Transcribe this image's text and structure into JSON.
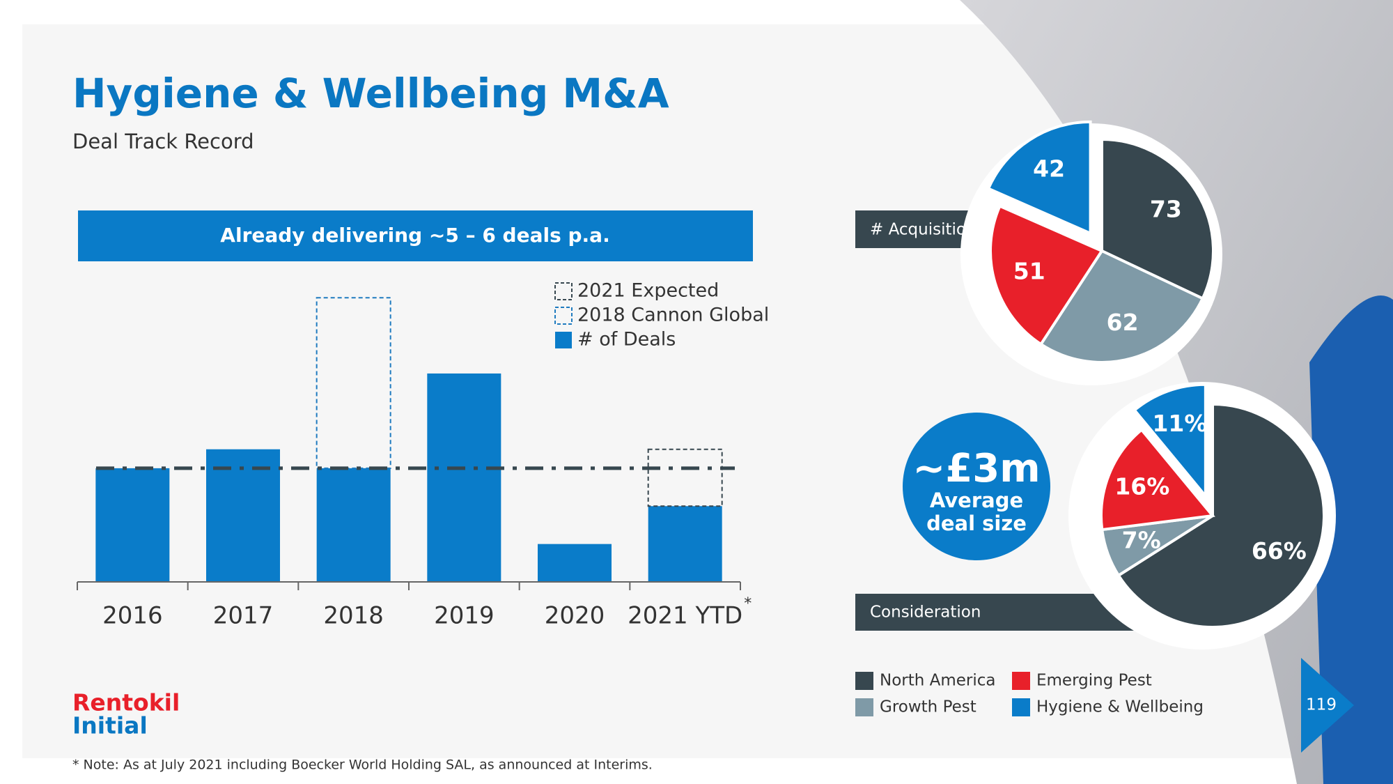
{
  "title": "Hygiene & Wellbeing M&A",
  "subtitle": "Deal Track Record",
  "banner": "Already delivering ~5 – 6 deals p.a.",
  "chart_data": [
    {
      "type": "bar",
      "stacked": true,
      "categories": [
        "2016",
        "2017",
        "2018",
        "2019",
        "2020",
        "2021 YTD"
      ],
      "category_marks": [
        null,
        null,
        null,
        null,
        null,
        "*"
      ],
      "series": [
        {
          "name": "# of Deals",
          "color": "#0a7cc9",
          "values": [
            6,
            7,
            6,
            11,
            2,
            4
          ]
        },
        {
          "name": "2018 Cannon Global",
          "color": "#1f7bbf",
          "style": "dashed",
          "values": [
            null,
            null,
            9,
            null,
            null,
            null
          ]
        },
        {
          "name": "2021 Expected",
          "color": "#37474f",
          "style": "dashed",
          "values": [
            null,
            null,
            null,
            null,
            null,
            3
          ]
        }
      ],
      "legend_reversed": true,
      "ylim": [
        0,
        16
      ],
      "reference_line": {
        "value": 6,
        "color": "#37474f",
        "style": "dash-dot"
      }
    },
    {
      "type": "pie",
      "label": "# Acquisitions",
      "categories": [
        "North America",
        "Growth Pest",
        "Emerging Pest",
        "Hygiene & Wellbeing"
      ],
      "colors": [
        "#37474f",
        "#7f9aa7",
        "#e8202a",
        "#0a7cc9"
      ],
      "values": [
        73,
        62,
        51,
        42
      ],
      "exploded": 3
    },
    {
      "type": "pie",
      "label": "Consideration",
      "values": [
        66,
        7,
        16,
        11
      ],
      "value_labels": [
        "66%",
        "7%",
        "16%",
        "11%"
      ],
      "exploded": 3
    }
  ],
  "highlight": {
    "value": "~£3m",
    "caption": "Average deal size"
  },
  "logo": [
    "Rentokil",
    "Initial"
  ],
  "footnote": "* Note: As at July 2021 including Boecker World Holding SAL, as announced at Interims.",
  "page_number": "119"
}
